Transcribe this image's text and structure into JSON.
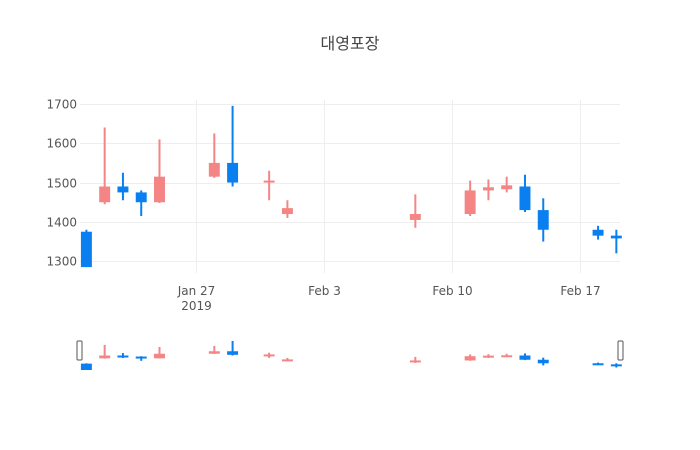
{
  "chart_data": {
    "type": "candlestick",
    "title": "대영포장",
    "ylim": [
      1270,
      1710
    ],
    "y_ticks": [
      1300,
      1400,
      1500,
      1600,
      1700
    ],
    "x_ticks": [
      {
        "date": "2019-01-27",
        "label": "Jan 27",
        "sublabel": "2019"
      },
      {
        "date": "2019-02-03",
        "label": "Feb 3",
        "sublabel": ""
      },
      {
        "date": "2019-02-10",
        "label": "Feb 10",
        "sublabel": ""
      },
      {
        "date": "2019-02-17",
        "label": "Feb 17",
        "sublabel": ""
      }
    ],
    "x_range": [
      "2019-01-21",
      "2019-02-19"
    ],
    "increasing_color": "#f48585",
    "decreasing_color": "#0a7ff0",
    "rangeslider": true,
    "series": [
      {
        "date": "2019-01-21",
        "open": 1375,
        "high": 1380,
        "low": 1285,
        "close": 1285
      },
      {
        "date": "2019-01-22",
        "open": 1450,
        "high": 1640,
        "low": 1445,
        "close": 1490
      },
      {
        "date": "2019-01-23",
        "open": 1490,
        "high": 1525,
        "low": 1455,
        "close": 1475
      },
      {
        "date": "2019-01-24",
        "open": 1475,
        "high": 1480,
        "low": 1415,
        "close": 1450
      },
      {
        "date": "2019-01-25",
        "open": 1450,
        "high": 1610,
        "low": 1448,
        "close": 1515
      },
      {
        "date": "2019-01-28",
        "open": 1515,
        "high": 1625,
        "low": 1512,
        "close": 1550
      },
      {
        "date": "2019-01-29",
        "open": 1550,
        "high": 1695,
        "low": 1490,
        "close": 1500
      },
      {
        "date": "2019-01-31",
        "open": 1505,
        "high": 1530,
        "low": 1455,
        "close": 1505
      },
      {
        "date": "2019-02-01",
        "open": 1420,
        "high": 1455,
        "low": 1410,
        "close": 1435
      },
      {
        "date": "2019-02-08",
        "open": 1405,
        "high": 1470,
        "low": 1385,
        "close": 1420
      },
      {
        "date": "2019-02-11",
        "open": 1420,
        "high": 1505,
        "low": 1415,
        "close": 1480
      },
      {
        "date": "2019-02-12",
        "open": 1480,
        "high": 1508,
        "low": 1455,
        "close": 1488
      },
      {
        "date": "2019-02-13",
        "open": 1483,
        "high": 1515,
        "low": 1475,
        "close": 1493
      },
      {
        "date": "2019-02-14",
        "open": 1490,
        "high": 1520,
        "low": 1425,
        "close": 1430
      },
      {
        "date": "2019-02-15",
        "open": 1430,
        "high": 1460,
        "low": 1350,
        "close": 1380
      },
      {
        "date": "2019-02-18",
        "open": 1380,
        "high": 1390,
        "low": 1355,
        "close": 1365
      },
      {
        "date": "2019-02-19",
        "open": 1365,
        "high": 1380,
        "low": 1320,
        "close": 1358
      }
    ]
  }
}
